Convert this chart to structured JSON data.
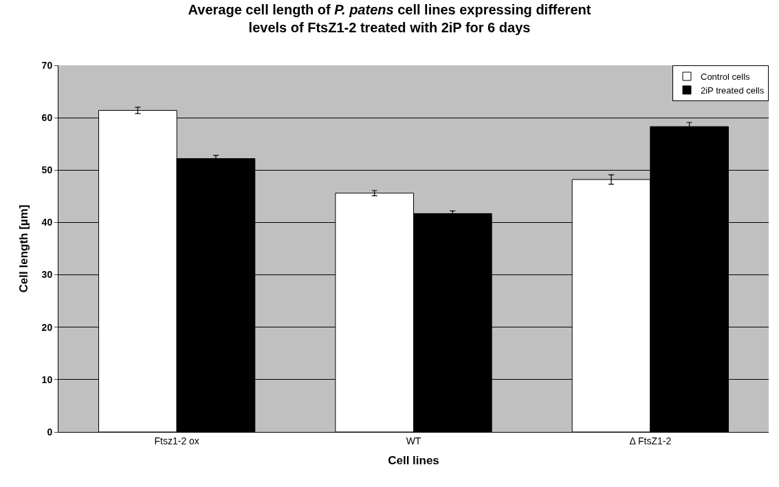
{
  "chart_data": {
    "type": "bar",
    "title": "Average cell length of *P. patens* cell lines expressing different\nlevels of FtsZ1-2 treated with 2iP for 6 days",
    "xlabel": "Cell lines",
    "ylabel": "Cell length [µm]",
    "categories": [
      "Ftsz1-2 ox",
      "WT",
      "Δ FtsZ1-2"
    ],
    "series": [
      {
        "name": "Control cells",
        "color": "#ffffff",
        "values": [
          61.4,
          45.6,
          48.2
        ],
        "errors": [
          0.6,
          0.5,
          0.9
        ]
      },
      {
        "name": "2iP treated cells",
        "color": "#000000",
        "values": [
          52.2,
          41.7,
          58.3
        ],
        "errors": [
          0.6,
          0.5,
          0.8
        ]
      }
    ],
    "ylim": [
      0,
      70
    ],
    "yticks": [
      0,
      10,
      20,
      30,
      40,
      50,
      60,
      70
    ],
    "grid": "y",
    "legend": "top right"
  }
}
